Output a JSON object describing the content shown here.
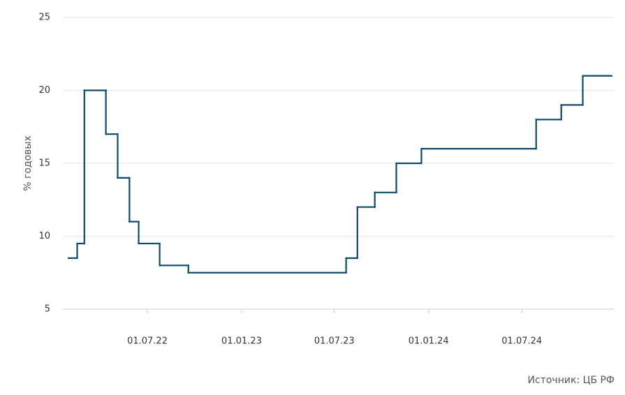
{
  "chart_data": {
    "type": "step",
    "y_label": "% годовых",
    "source": "Источник: ЦБ РФ",
    "x": [
      "2022-01-28",
      "2022-02-14",
      "2022-02-28",
      "2022-04-11",
      "2022-05-04",
      "2022-05-27",
      "2022-06-14",
      "2022-07-25",
      "2022-09-19",
      "2023-07-24",
      "2023-08-15",
      "2023-09-18",
      "2023-10-30",
      "2023-12-18",
      "2024-07-29",
      "2024-09-16",
      "2024-10-28",
      "2024-12-23"
    ],
    "series": [
      {
        "color": "#0b4a6a",
        "values": [
          8.5,
          9.5,
          20,
          17,
          14,
          11,
          9.5,
          8,
          7.5,
          8.5,
          12,
          13,
          15,
          16,
          18,
          19,
          21,
          21
        ]
      }
    ],
    "xlim": [
      "2022-01-17",
      "2024-12-29"
    ],
    "xticks": [
      {
        "value": "2022-07-01",
        "label": "01.07.22"
      },
      {
        "value": "2023-01-01",
        "label": "01.01.23"
      },
      {
        "value": "2023-07-01",
        "label": "01.07.23"
      },
      {
        "value": "2024-01-01",
        "label": "01.01.24"
      },
      {
        "value": "2024-07-01",
        "label": "01.07.24"
      }
    ],
    "ylim": [
      5,
      25
    ],
    "yticks": [
      5,
      10,
      15,
      20,
      25
    ],
    "grid": true
  }
}
